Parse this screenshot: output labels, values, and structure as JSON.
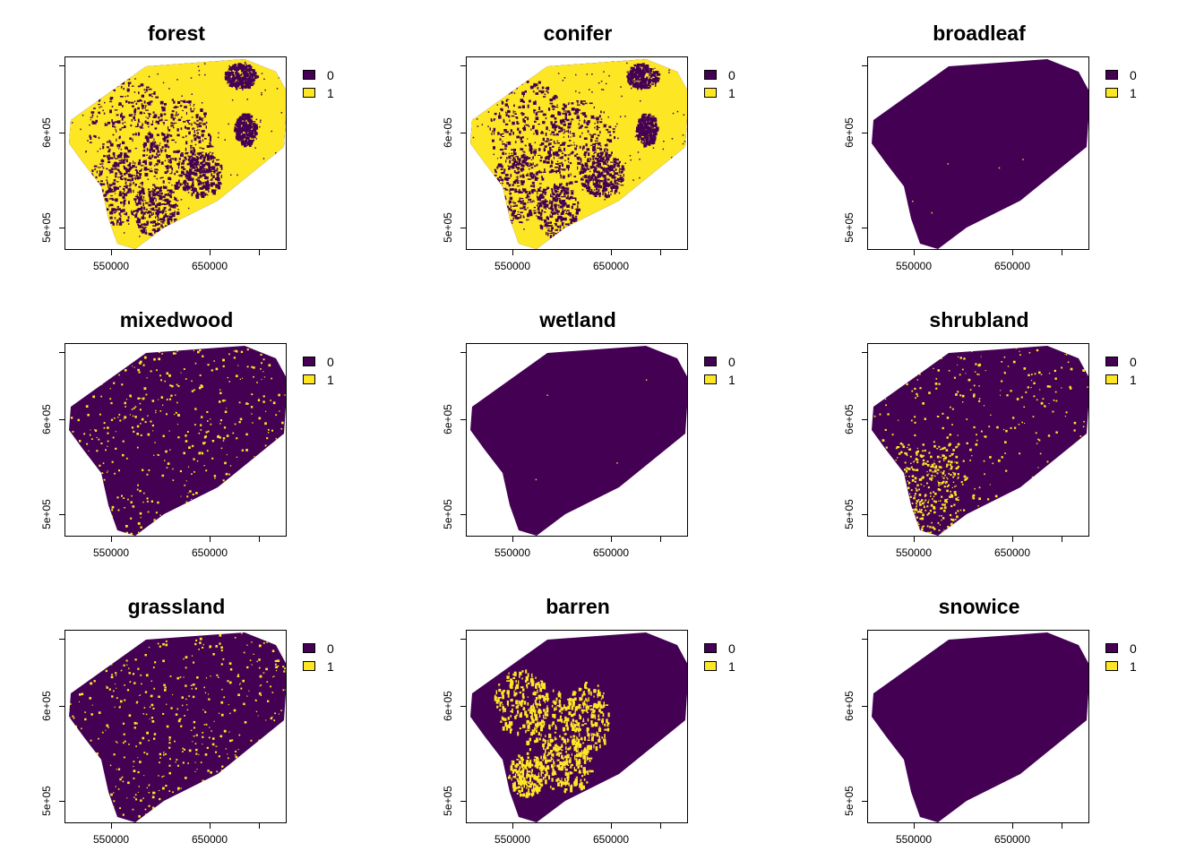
{
  "figure": {
    "panels": [
      {
        "title": "forest",
        "coverage": 0.65,
        "pattern": "dominant"
      },
      {
        "title": "conifer",
        "coverage": 0.62,
        "pattern": "dominant"
      },
      {
        "title": "broadleaf",
        "coverage": 0.002,
        "pattern": "trace"
      },
      {
        "title": "mixedwood",
        "coverage": 0.09,
        "pattern": "scattered"
      },
      {
        "title": "wetland",
        "coverage": 0.001,
        "pattern": "trace"
      },
      {
        "title": "shrubland",
        "coverage": 0.13,
        "pattern": "scattered-south"
      },
      {
        "title": "grassland",
        "coverage": 0.1,
        "pattern": "scattered"
      },
      {
        "title": "barren",
        "coverage": 0.1,
        "pattern": "clustered-central"
      },
      {
        "title": "snowice",
        "coverage": 0.0,
        "pattern": "none"
      }
    ],
    "axes": {
      "x_tick_labels": [
        "550000",
        "650000"
      ],
      "y_tick_labels": [
        "6e+05",
        "5e+05"
      ]
    },
    "legend": [
      {
        "label": "0",
        "color": "#440154"
      },
      {
        "label": "1",
        "color": "#FDE725"
      }
    ],
    "colors": {
      "class_0": "#440154",
      "class_1": "#FDE725"
    }
  }
}
